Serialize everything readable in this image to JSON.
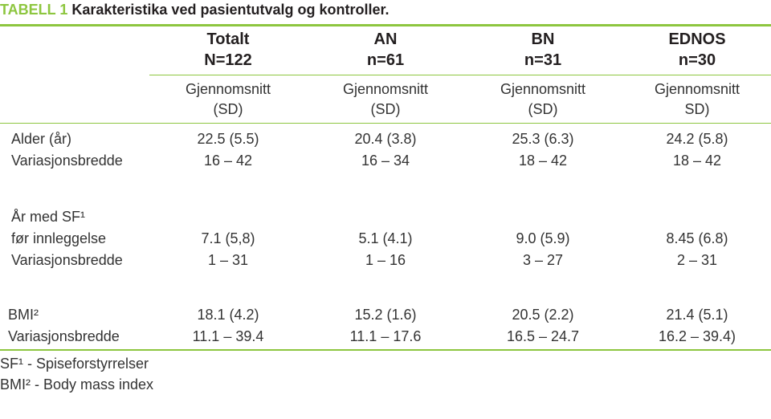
{
  "title": {
    "label": "TABELL 1",
    "text": "Karakteristika ved pasientutvalg og kontroller."
  },
  "columns": [
    {
      "name": "Totalt",
      "n": "N=122",
      "sub1": "Gjennomsnitt",
      "sub2": "(SD)"
    },
    {
      "name": "AN",
      "n": "n=61",
      "sub1": "Gjennomsnitt",
      "sub2": "(SD)"
    },
    {
      "name": "BN",
      "n": "n=31",
      "sub1": "Gjennomsnitt",
      "sub2": "(SD)"
    },
    {
      "name": "EDNOS",
      "n": "n=30",
      "sub1": "Gjennomsnitt",
      "sub2": "SD)"
    }
  ],
  "rows": {
    "alder": {
      "label1": "Alder (år)",
      "label2": "Variasjonsbredde",
      "mean": [
        "22.5 (5.5)",
        "20.4 (3.8)",
        "25.3 (6.3)",
        "24.2 (5.8)"
      ],
      "range": [
        "16 – 42",
        "16 – 34",
        "18 – 42",
        "18 – 42"
      ]
    },
    "sf": {
      "label1": "År med SF¹",
      "label2": "før innleggelse",
      "label3": "Variasjonsbredde",
      "mean": [
        "7.1 (5,8)",
        "5.1 (4.1)",
        "9.0 (5.9)",
        "8.45 (6.8)"
      ],
      "range": [
        "1 – 31",
        "1 – 16",
        "3 – 27",
        "2 – 31"
      ]
    },
    "bmi": {
      "label1": "BMI²",
      "label2": "Variasjonsbredde",
      "mean": [
        "18.1 (4.2)",
        "15.2 (1.6)",
        "20.5 (2.2)",
        "21.4 (5.1)"
      ],
      "range": [
        "11.1 – 39.4",
        "11.1 – 17.6",
        "16.5 – 24.7",
        "16.2 – 39.4)"
      ]
    }
  },
  "footnotes": [
    "SF¹ - Spiseforstyrrelser",
    "BMI² - Body mass index"
  ],
  "colors": {
    "accent": "#8dc63f",
    "text": "#231f20"
  }
}
